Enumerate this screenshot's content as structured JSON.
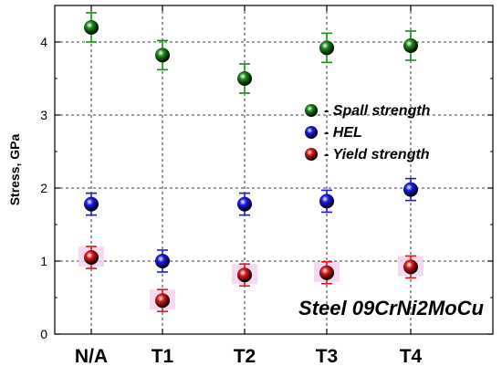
{
  "chart_data": {
    "type": "scatter",
    "ylabel": "Stress, GPa",
    "categories": [
      "N/A",
      "T1",
      "T2",
      "T3",
      "T4"
    ],
    "ylim": [
      0,
      4.5
    ],
    "yticks": [
      0,
      1,
      2,
      3,
      4
    ],
    "grid": true,
    "legend_position": "right",
    "annotation": "Steel 09CrNi2MoCu",
    "series": [
      {
        "name": "- Spall strength",
        "color": "#1a8a1a",
        "values": [
          4.2,
          3.82,
          3.5,
          3.92,
          3.95
        ],
        "errors": [
          0.2,
          0.2,
          0.2,
          0.2,
          0.2
        ]
      },
      {
        "name": "- HEL",
        "color": "#1a1aee",
        "values": [
          1.78,
          1.0,
          1.78,
          1.82,
          1.98
        ],
        "errors": [
          0.15,
          0.15,
          0.15,
          0.15,
          0.15
        ]
      },
      {
        "name": "- Yield strength",
        "color": "#d91a1a",
        "values": [
          1.05,
          0.46,
          0.81,
          0.84,
          0.92
        ],
        "errors": [
          0.15,
          0.15,
          0.15,
          0.15,
          0.15
        ]
      }
    ]
  }
}
